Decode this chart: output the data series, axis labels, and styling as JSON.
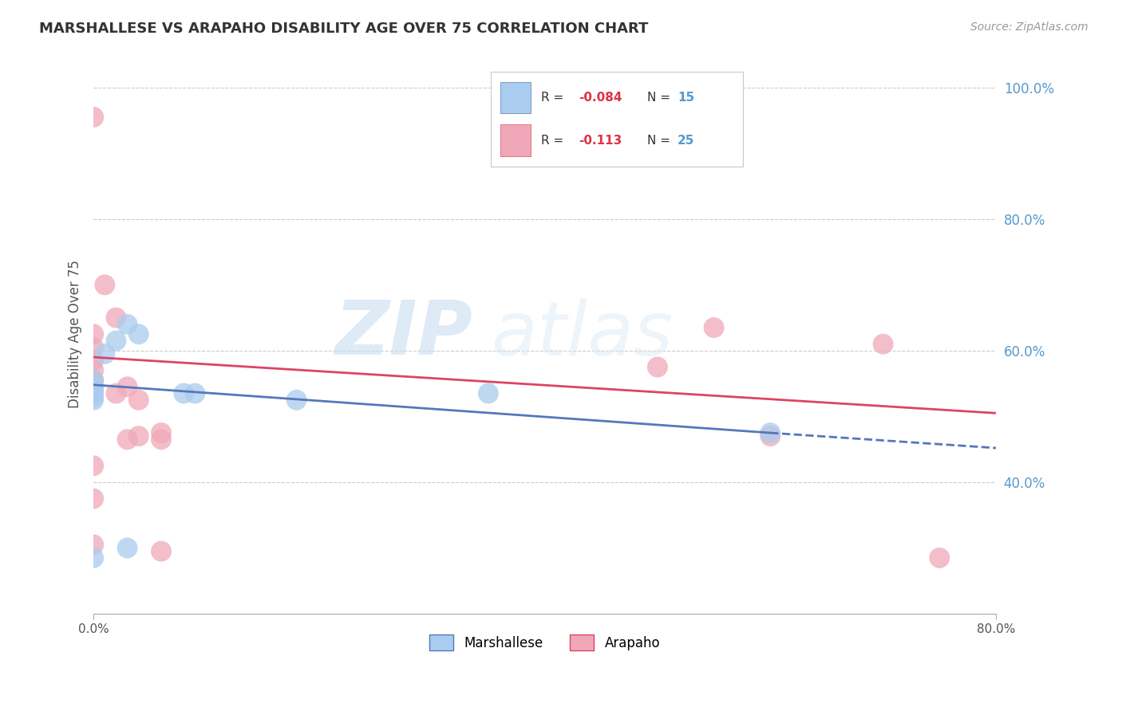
{
  "title": "MARSHALLESE VS ARAPAHO DISABILITY AGE OVER 75 CORRELATION CHART",
  "source": "Source: ZipAtlas.com",
  "ylabel": "Disability Age Over 75",
  "xlim": [
    0.0,
    0.8
  ],
  "ylim": [
    0.2,
    1.05
  ],
  "ytick_positions": [
    0.4,
    0.6,
    0.8,
    1.0
  ],
  "xtick_positions": [
    0.0,
    0.8
  ],
  "marshallese_R": "-0.084",
  "marshallese_N": "15",
  "arapaho_R": "-0.113",
  "arapaho_N": "25",
  "marshallese_color": "#aaccee",
  "arapaho_color": "#f0a8b8",
  "marshallese_line_color": "#5577bb",
  "arapaho_line_color": "#dd4466",
  "background_color": "#ffffff",
  "grid_color": "#cccccc",
  "watermark_zip": "ZIP",
  "watermark_atlas": "atlas",
  "marshallese_points": [
    [
      0.0,
      0.535
    ],
    [
      0.0,
      0.545
    ],
    [
      0.0,
      0.555
    ],
    [
      0.0,
      0.53
    ],
    [
      0.0,
      0.525
    ],
    [
      0.0,
      0.54
    ],
    [
      0.01,
      0.595
    ],
    [
      0.02,
      0.615
    ],
    [
      0.03,
      0.64
    ],
    [
      0.04,
      0.625
    ],
    [
      0.08,
      0.535
    ],
    [
      0.09,
      0.535
    ],
    [
      0.18,
      0.525
    ],
    [
      0.35,
      0.535
    ],
    [
      0.6,
      0.475
    ]
  ],
  "marshallese_low_points": [
    [
      0.0,
      0.285
    ],
    [
      0.03,
      0.3
    ]
  ],
  "arapaho_points": [
    [
      0.0,
      0.955
    ],
    [
      0.0,
      0.545
    ],
    [
      0.0,
      0.57
    ],
    [
      0.0,
      0.625
    ],
    [
      0.0,
      0.585
    ],
    [
      0.0,
      0.555
    ],
    [
      0.0,
      0.605
    ],
    [
      0.0,
      0.425
    ],
    [
      0.0,
      0.375
    ],
    [
      0.0,
      0.305
    ],
    [
      0.01,
      0.7
    ],
    [
      0.02,
      0.65
    ],
    [
      0.02,
      0.535
    ],
    [
      0.03,
      0.545
    ],
    [
      0.03,
      0.465
    ],
    [
      0.04,
      0.47
    ],
    [
      0.04,
      0.525
    ],
    [
      0.06,
      0.465
    ],
    [
      0.06,
      0.475
    ],
    [
      0.06,
      0.295
    ],
    [
      0.5,
      0.575
    ],
    [
      0.55,
      0.635
    ],
    [
      0.6,
      0.47
    ],
    [
      0.7,
      0.61
    ],
    [
      0.75,
      0.285
    ]
  ],
  "marshallese_line_solid": [
    [
      0.0,
      0.548
    ],
    [
      0.6,
      0.475
    ]
  ],
  "marshallese_line_dashed": [
    [
      0.6,
      0.475
    ],
    [
      0.8,
      0.452
    ]
  ],
  "arapaho_line": [
    [
      0.0,
      0.59
    ],
    [
      0.8,
      0.505
    ]
  ]
}
